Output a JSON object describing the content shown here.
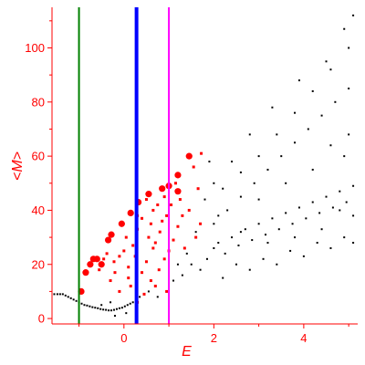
{
  "chart_data": {
    "type": "scatter",
    "title": "",
    "xlabel": "E",
    "ylabel": "<M>",
    "xlim": [
      -1.6,
      5.2
    ],
    "ylim": [
      -2,
      115
    ],
    "grid": false,
    "axis_color": "#ff0000",
    "x_ticks": [
      {
        "value": 0,
        "label": "0"
      },
      {
        "value": 2,
        "label": "2"
      },
      {
        "value": 4,
        "label": "4"
      }
    ],
    "y_ticks": [
      {
        "value": 0,
        "label": "0"
      },
      {
        "value": 20,
        "label": "20"
      },
      {
        "value": 40,
        "label": "40"
      },
      {
        "value": 60,
        "label": "60"
      },
      {
        "value": 80,
        "label": "80"
      },
      {
        "value": 100,
        "label": "100"
      }
    ],
    "vertical_lines": [
      {
        "x": -1.0,
        "color": "#008000",
        "style": "thin"
      },
      {
        "x": 0.28,
        "color": "#0000ff",
        "style": "thick"
      },
      {
        "x": 1.0,
        "color": "#ff00ff",
        "style": "medium"
      }
    ],
    "series": [
      {
        "color": "#ff0000",
        "marker": "large-square",
        "points": [
          [
            -0.85,
            17
          ],
          [
            -0.75,
            20
          ],
          [
            -0.68,
            22
          ],
          [
            -0.6,
            22
          ],
          [
            -0.35,
            29
          ],
          [
            -0.28,
            31
          ],
          [
            -0.05,
            35
          ],
          [
            0.15,
            39
          ],
          [
            0.32,
            43
          ],
          [
            0.55,
            46
          ],
          [
            0.85,
            48
          ],
          [
            1.2,
            53
          ],
          [
            1.2,
            47
          ],
          [
            1.45,
            60
          ],
          [
            -0.95,
            10
          ],
          [
            1.0,
            49
          ],
          [
            -0.5,
            20
          ]
        ]
      },
      {
        "color": "#ff0000",
        "marker": "small-square",
        "points": [
          [
            -0.55,
            18
          ],
          [
            -0.45,
            22
          ],
          [
            -0.38,
            24
          ],
          [
            -0.22,
            21
          ],
          [
            -0.1,
            23
          ],
          [
            0.0,
            25
          ],
          [
            0.05,
            30
          ],
          [
            0.1,
            19
          ],
          [
            0.1,
            15
          ],
          [
            0.2,
            27
          ],
          [
            0.25,
            23
          ],
          [
            0.3,
            38
          ],
          [
            0.3,
            33
          ],
          [
            0.4,
            37
          ],
          [
            0.4,
            17
          ],
          [
            0.5,
            44
          ],
          [
            0.5,
            21
          ],
          [
            0.55,
            30
          ],
          [
            0.6,
            35
          ],
          [
            0.65,
            40
          ],
          [
            0.65,
            26
          ],
          [
            0.7,
            28
          ],
          [
            0.75,
            42
          ],
          [
            0.78,
            18
          ],
          [
            0.8,
            32
          ],
          [
            0.85,
            36
          ],
          [
            0.9,
            45
          ],
          [
            0.9,
            22
          ],
          [
            0.95,
            38
          ],
          [
            1.0,
            25
          ],
          [
            1.05,
            42
          ],
          [
            1.1,
            29
          ],
          [
            1.15,
            50
          ],
          [
            1.2,
            34
          ],
          [
            1.25,
            44
          ],
          [
            1.3,
            38
          ],
          [
            1.35,
            26
          ],
          [
            1.45,
            40
          ],
          [
            1.55,
            56
          ],
          [
            1.6,
            30
          ],
          [
            1.65,
            48
          ],
          [
            1.7,
            35
          ],
          [
            1.72,
            61
          ],
          [
            -0.1,
            10
          ],
          [
            0.15,
            12
          ],
          [
            0.45,
            9
          ],
          [
            0.7,
            12
          ],
          [
            0.95,
            10
          ],
          [
            0.3,
            6
          ],
          [
            0.6,
            14
          ],
          [
            -0.3,
            14
          ],
          [
            -0.2,
            17
          ]
        ]
      },
      {
        "color": "#000000",
        "marker": "dot",
        "points": [
          [
            -1.55,
            9
          ],
          [
            -1.48,
            9
          ],
          [
            -1.42,
            9
          ],
          [
            -1.36,
            9
          ],
          [
            -1.3,
            8.5
          ],
          [
            -1.24,
            8
          ],
          [
            -1.18,
            7.5
          ],
          [
            -1.12,
            7
          ],
          [
            -1.06,
            6.5
          ],
          [
            -1.0,
            6
          ],
          [
            -0.94,
            5.5
          ],
          [
            -0.88,
            5
          ],
          [
            -0.82,
            4.8
          ],
          [
            -0.76,
            4.5
          ],
          [
            -0.7,
            4.2
          ],
          [
            -0.64,
            4
          ],
          [
            -0.58,
            3.8
          ],
          [
            -0.52,
            3.5
          ],
          [
            -0.46,
            3.3
          ],
          [
            -0.4,
            3.2
          ],
          [
            -0.34,
            3
          ],
          [
            -0.28,
            3
          ],
          [
            -0.22,
            3.2
          ],
          [
            -0.16,
            3.5
          ],
          [
            -0.1,
            3.8
          ],
          [
            -0.04,
            4
          ],
          [
            0.02,
            4.5
          ],
          [
            0.08,
            5
          ],
          [
            0.14,
            5.5
          ],
          [
            0.2,
            6
          ],
          [
            -0.5,
            5
          ],
          [
            -0.3,
            6
          ],
          [
            -0.2,
            1
          ],
          [
            0.05,
            2
          ],
          [
            0.35,
            8
          ],
          [
            0.55,
            10
          ],
          [
            0.75,
            8
          ],
          [
            1.3,
            16
          ],
          [
            1.5,
            20
          ],
          [
            1.7,
            18
          ],
          [
            1.85,
            22
          ],
          [
            2.0,
            26
          ],
          [
            2.1,
            28
          ],
          [
            2.25,
            24
          ],
          [
            2.4,
            30
          ],
          [
            2.55,
            27
          ],
          [
            2.7,
            33
          ],
          [
            2.85,
            29
          ],
          [
            3.0,
            35
          ],
          [
            3.15,
            31
          ],
          [
            3.3,
            37
          ],
          [
            3.45,
            33
          ],
          [
            3.6,
            39
          ],
          [
            3.75,
            35
          ],
          [
            3.9,
            41
          ],
          [
            4.05,
            37
          ],
          [
            4.2,
            43
          ],
          [
            4.35,
            39
          ],
          [
            4.5,
            45
          ],
          [
            4.65,
            41
          ],
          [
            4.8,
            47
          ],
          [
            4.95,
            43
          ],
          [
            5.1,
            49
          ],
          [
            2.0,
            35
          ],
          [
            2.3,
            40
          ],
          [
            2.6,
            45
          ],
          [
            2.9,
            50
          ],
          [
            3.2,
            55
          ],
          [
            3.5,
            60
          ],
          [
            3.8,
            65
          ],
          [
            4.1,
            70
          ],
          [
            4.4,
            75
          ],
          [
            4.7,
            80
          ],
          [
            5.0,
            85
          ],
          [
            2.2,
            48
          ],
          [
            2.6,
            54
          ],
          [
            3.0,
            60
          ],
          [
            3.4,
            68
          ],
          [
            3.8,
            76
          ],
          [
            4.2,
            84
          ],
          [
            4.6,
            92
          ],
          [
            5.0,
            100
          ],
          [
            5.1,
            112
          ],
          [
            4.9,
            107
          ],
          [
            4.5,
            95
          ],
          [
            3.9,
            88
          ],
          [
            3.3,
            78
          ],
          [
            2.8,
            68
          ],
          [
            2.4,
            58
          ],
          [
            2.0,
            50
          ],
          [
            1.8,
            44
          ],
          [
            1.9,
            58
          ],
          [
            2.5,
            20
          ],
          [
            3.1,
            22
          ],
          [
            3.7,
            25
          ],
          [
            4.3,
            28
          ],
          [
            4.9,
            30
          ],
          [
            2.2,
            15
          ],
          [
            2.8,
            18
          ],
          [
            3.4,
            20
          ],
          [
            4.0,
            23
          ],
          [
            4.6,
            26
          ],
          [
            5.1,
            28
          ],
          [
            4.6,
            64
          ],
          [
            4.9,
            60
          ],
          [
            5.0,
            68
          ],
          [
            4.2,
            55
          ],
          [
            3.6,
            50
          ],
          [
            3.0,
            44
          ],
          [
            4.8,
            40
          ],
          [
            5.1,
            38
          ],
          [
            4.4,
            33
          ],
          [
            3.8,
            30
          ],
          [
            3.2,
            28
          ],
          [
            2.6,
            32
          ],
          [
            2.1,
            38
          ],
          [
            1.6,
            32
          ],
          [
            1.4,
            24
          ],
          [
            1.2,
            20
          ],
          [
            1.1,
            14
          ]
        ]
      }
    ]
  }
}
